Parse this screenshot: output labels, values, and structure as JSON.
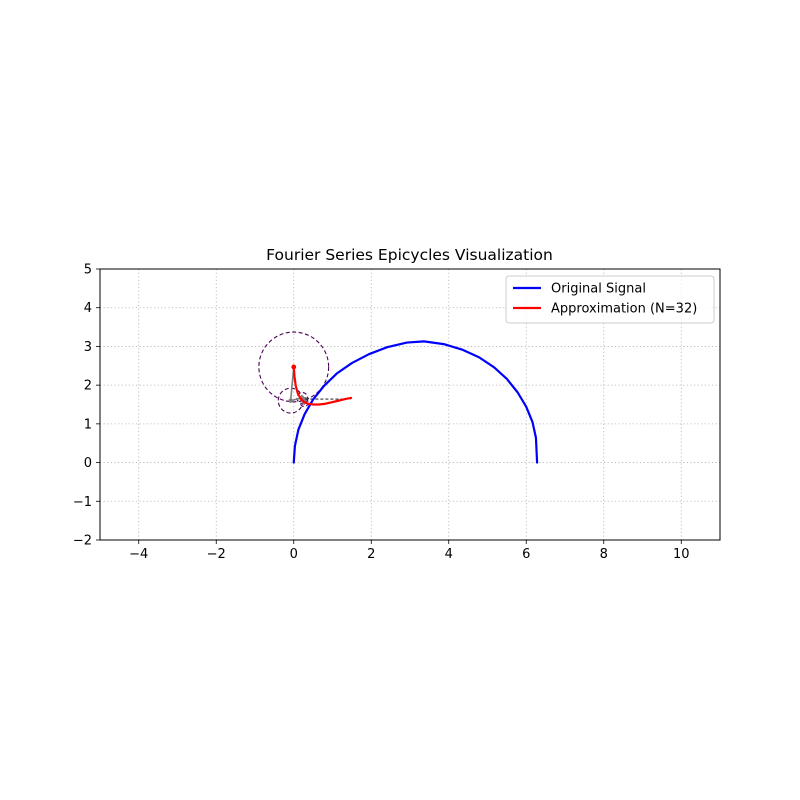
{
  "chart_data": {
    "type": "line",
    "title": "Fourier Series Epicycles Visualization",
    "xlabel": "",
    "ylabel": "",
    "xlim": [
      -5,
      11
    ],
    "ylim": [
      -2,
      5
    ],
    "xticks": [
      -4,
      -2,
      0,
      2,
      4,
      6,
      8,
      10
    ],
    "yticks": [
      -2,
      -1,
      0,
      1,
      2,
      3,
      4,
      5
    ],
    "xtick_labels": [
      "−4",
      "−2",
      "0",
      "2",
      "4",
      "6",
      "8",
      "10"
    ],
    "ytick_labels": [
      "−2",
      "−1",
      "0",
      "1",
      "2",
      "3",
      "4",
      "5"
    ],
    "grid": true,
    "legend_position": "top-right",
    "series": [
      {
        "name": "Original Signal",
        "color": "#0000ff",
        "x": [
          0.0,
          0.03,
          0.12,
          0.28,
          0.5,
          0.78,
          1.11,
          1.5,
          1.94,
          2.41,
          2.92,
          3.36,
          3.87,
          4.34,
          4.78,
          5.17,
          5.5,
          5.78,
          6.0,
          6.16,
          6.25,
          6.28
        ],
        "y": [
          0.0,
          0.43,
          0.85,
          1.25,
          1.63,
          1.98,
          2.3,
          2.57,
          2.8,
          2.98,
          3.1,
          3.13,
          3.06,
          2.92,
          2.72,
          2.46,
          2.16,
          1.81,
          1.44,
          1.05,
          0.64,
          0.0
        ]
      },
      {
        "name": "Approximation (N=32)",
        "color": "#ff0000",
        "x": [
          0.0,
          0.02,
          0.05,
          0.1,
          0.17,
          0.26,
          0.37,
          0.5,
          0.65,
          0.82,
          0.99,
          1.16,
          1.32,
          1.48
        ],
        "y": [
          2.47,
          2.22,
          1.99,
          1.8,
          1.66,
          1.57,
          1.52,
          1.5,
          1.5,
          1.52,
          1.56,
          1.6,
          1.64,
          1.67
        ]
      }
    ],
    "epicycles": {
      "circle_color": "#4b0055",
      "arm_color": "#808080",
      "circles": [
        {
          "cx": 0.0,
          "cy": 2.47,
          "r": 0.9
        },
        {
          "cx": -0.08,
          "cy": 1.6,
          "r": 0.32
        },
        {
          "cx": 0.22,
          "cy": 1.67,
          "r": 0.14
        },
        {
          "cx": 0.27,
          "cy": 1.55,
          "r": 0.1
        }
      ],
      "arms": [
        {
          "x1": 0.0,
          "y1": 2.47,
          "x2": -0.08,
          "y2": 1.6
        },
        {
          "x1": -0.08,
          "y1": 1.6,
          "x2": 0.22,
          "y2": 1.67
        },
        {
          "x1": 0.22,
          "y1": 1.67,
          "x2": 0.27,
          "y2": 1.55
        },
        {
          "x1": 0.27,
          "y1": 1.55,
          "x2": 0.3,
          "y2": 1.64
        }
      ],
      "connector": {
        "x1": 0.3,
        "y1": 1.64,
        "x2": 1.48,
        "y2": 1.64,
        "color": "#000000"
      },
      "tip_point": {
        "x": 0.0,
        "y": 2.47,
        "color": "#ff0000"
      }
    }
  }
}
